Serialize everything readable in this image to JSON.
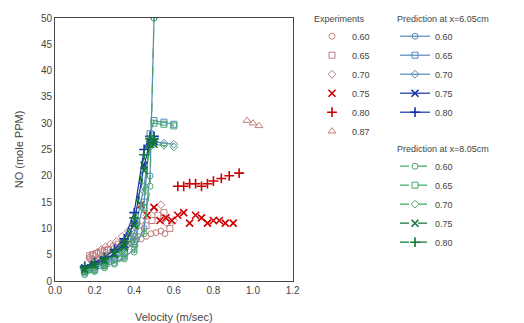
{
  "chart_data": {
    "type": "line",
    "xlabel": "Velocity (m/sec)",
    "ylabel": "NO (mole PPM)",
    "xlim": [
      0,
      1.2
    ],
    "ylim": [
      0,
      50
    ],
    "xticks": [
      {
        "value": 0,
        "label": "0.0"
      },
      0.2,
      0.4,
      0.6,
      0.8,
      {
        "value": 1.0,
        "label": "1.0"
      },
      1.2
    ],
    "yticks": [
      0,
      5,
      10,
      15,
      20,
      25,
      30,
      35,
      40,
      45,
      50
    ],
    "grid": false,
    "series": [
      {
        "name": "0.60",
        "group": "Experiments",
        "type": "scatter",
        "marker": "circle",
        "color": "#c08080",
        "x": [
          0.175,
          0.185,
          0.195,
          0.205,
          0.215,
          0.225,
          0.235,
          0.245,
          0.26,
          0.275,
          0.295,
          0.315,
          0.335,
          0.36,
          0.385,
          0.41,
          0.435,
          0.46,
          0.485,
          0.51,
          0.535,
          0.555
        ],
        "values": [
          4.2,
          3.8,
          3.5,
          3.8,
          4.0,
          4.2,
          3.8,
          4.5,
          4.8,
          5.2,
          5.5,
          6.0,
          6.3,
          6.8,
          7.2,
          7.8,
          8.0,
          8.5,
          9.0,
          9.2,
          9.5,
          9.0
        ]
      },
      {
        "name": "0.65",
        "group": "Experiments",
        "type": "scatter",
        "marker": "square",
        "color": "#c08080",
        "x": [
          0.175,
          0.19,
          0.21,
          0.23,
          0.25,
          0.27,
          0.295,
          0.32,
          0.345,
          0.37,
          0.4,
          0.43,
          0.46,
          0.49,
          0.52,
          0.55,
          0.58
        ],
        "values": [
          4.8,
          5.0,
          5.2,
          5.5,
          5.8,
          6.0,
          6.5,
          7.0,
          7.5,
          8.0,
          8.5,
          9.5,
          10.5,
          11.5,
          12.5,
          13.0,
          10.0
        ]
      },
      {
        "name": "0.70",
        "group": "Experiments",
        "type": "scatter",
        "marker": "diamond",
        "color": "#c08080",
        "x": [
          0.175,
          0.195,
          0.215,
          0.235,
          0.255,
          0.28,
          0.31,
          0.34,
          0.37,
          0.4,
          0.435,
          0.465,
          0.5,
          0.535,
          0.565,
          0.6
        ],
        "values": [
          4.5,
          5.0,
          5.5,
          6.0,
          6.5,
          7.0,
          7.5,
          8.5,
          9.5,
          10.5,
          11.5,
          12.5,
          13.5,
          14.5,
          11.0,
          11.5
        ]
      },
      {
        "name": "0.75",
        "group": "Experiments",
        "type": "scatter",
        "marker": "x",
        "color": "#cc0000",
        "x": [
          0.435,
          0.465,
          0.5,
          0.53,
          0.56,
          0.59,
          0.62,
          0.65,
          0.68,
          0.71,
          0.74,
          0.77,
          0.8,
          0.83,
          0.86,
          0.9
        ],
        "values": [
          14.5,
          12.5,
          14.0,
          11.5,
          12.0,
          11.5,
          12.5,
          13.0,
          11.0,
          12.5,
          12.0,
          11.0,
          11.5,
          11.5,
          11.0,
          11.0
        ]
      },
      {
        "name": "0.80",
        "group": "Experiments",
        "type": "scatter",
        "marker": "plus",
        "color": "#cc0000",
        "x": [
          0.62,
          0.65,
          0.68,
          0.71,
          0.74,
          0.77,
          0.8,
          0.84,
          0.88,
          0.93
        ],
        "values": [
          18.0,
          18.0,
          18.5,
          18.5,
          18.0,
          18.5,
          19.0,
          19.5,
          20.0,
          20.5
        ]
      },
      {
        "name": "0.87",
        "group": "Experiments",
        "type": "scatter",
        "marker": "triangle-up",
        "color": "#c08080",
        "x": [
          0.97,
          1.0,
          1.03
        ],
        "values": [
          30.5,
          30.0,
          29.5
        ]
      },
      {
        "name": "0.60",
        "group": "Prediction at x=6.05cm",
        "type": "line",
        "line_style": "solid",
        "marker": "circle",
        "color": "#5588bb",
        "x": [
          0.15,
          0.2,
          0.25,
          0.3,
          0.35,
          0.4,
          0.45,
          0.48,
          0.5
        ],
        "values": [
          1.5,
          2.0,
          2.8,
          3.5,
          4.5,
          6.0,
          10.0,
          20.0,
          50.0
        ]
      },
      {
        "name": "0.65",
        "group": "Prediction at x=6.05cm",
        "type": "line",
        "line_style": "solid",
        "marker": "square",
        "color": "#5588bb",
        "x": [
          0.15,
          0.2,
          0.25,
          0.3,
          0.35,
          0.4,
          0.45,
          0.48,
          0.5,
          0.55,
          0.6
        ],
        "values": [
          2.0,
          2.5,
          3.2,
          4.2,
          5.5,
          7.5,
          15.0,
          28.0,
          30.5,
          30.2,
          29.8
        ]
      },
      {
        "name": "0.70",
        "group": "Prediction at x=6.05cm",
        "type": "line",
        "line_style": "solid",
        "marker": "diamond",
        "color": "#5588bb",
        "x": [
          0.15,
          0.2,
          0.25,
          0.3,
          0.35,
          0.4,
          0.45,
          0.48,
          0.5,
          0.55,
          0.6
        ],
        "values": [
          2.2,
          2.8,
          3.5,
          4.5,
          6.0,
          9.0,
          18.0,
          26.5,
          26.5,
          26.2,
          26.0
        ]
      },
      {
        "name": "0.75",
        "group": "Prediction at x=6.05cm",
        "type": "line",
        "line_style": "solid",
        "marker": "x",
        "color": "#1133aa",
        "x": [
          0.15,
          0.2,
          0.25,
          0.3,
          0.35,
          0.4,
          0.45,
          0.48,
          0.5
        ],
        "values": [
          2.5,
          3.2,
          4.0,
          5.2,
          7.0,
          11.0,
          22.0,
          26.5,
          26.5
        ]
      },
      {
        "name": "0.80",
        "group": "Prediction at x=6.05cm",
        "type": "line",
        "line_style": "solid",
        "marker": "plus",
        "color": "#1133aa",
        "x": [
          0.15,
          0.2,
          0.25,
          0.3,
          0.35,
          0.4,
          0.45,
          0.48,
          0.5
        ],
        "values": [
          2.8,
          3.5,
          4.5,
          6.0,
          8.0,
          13.0,
          25.0,
          27.5,
          27.5
        ]
      },
      {
        "name": "0.60",
        "group": "Prediction at x=8.05cm",
        "type": "line",
        "line_style": "dashed",
        "marker": "circle",
        "color": "#44aa66",
        "x": [
          0.15,
          0.2,
          0.25,
          0.3,
          0.35,
          0.4,
          0.45,
          0.48,
          0.5
        ],
        "values": [
          1.2,
          1.8,
          2.5,
          3.2,
          4.2,
          5.5,
          9.0,
          18.0,
          50.0
        ]
      },
      {
        "name": "0.65",
        "group": "Prediction at x=8.05cm",
        "type": "line",
        "line_style": "dashed",
        "marker": "square",
        "color": "#44aa66",
        "x": [
          0.15,
          0.2,
          0.25,
          0.3,
          0.35,
          0.4,
          0.45,
          0.48,
          0.5,
          0.55,
          0.6
        ],
        "values": [
          1.8,
          2.2,
          3.0,
          4.0,
          5.2,
          7.0,
          14.0,
          27.0,
          30.0,
          29.8,
          29.5
        ]
      },
      {
        "name": "0.70",
        "group": "Prediction at x=8.05cm",
        "type": "line",
        "line_style": "dashed",
        "marker": "diamond",
        "color": "#44aa66",
        "x": [
          0.15,
          0.2,
          0.25,
          0.3,
          0.35,
          0.4,
          0.45,
          0.48,
          0.5,
          0.55,
          0.6
        ],
        "values": [
          2.0,
          2.5,
          3.2,
          4.2,
          5.5,
          8.5,
          17.0,
          25.5,
          26.0,
          25.8,
          25.5
        ]
      },
      {
        "name": "0.75",
        "group": "Prediction at x=8.05cm",
        "type": "line",
        "line_style": "dashed",
        "marker": "x",
        "color": "#117733",
        "x": [
          0.15,
          0.2,
          0.25,
          0.3,
          0.35,
          0.4,
          0.45,
          0.48,
          0.5
        ],
        "values": [
          2.2,
          3.0,
          3.8,
          5.0,
          6.5,
          10.5,
          21.0,
          26.0,
          26.0
        ]
      },
      {
        "name": "0.80",
        "group": "Prediction at x=8.05cm",
        "type": "line",
        "line_style": "dashed",
        "marker": "plus",
        "color": "#117733",
        "x": [
          0.15,
          0.2,
          0.25,
          0.3,
          0.35,
          0.4,
          0.45,
          0.48,
          0.5
        ],
        "values": [
          2.5,
          3.2,
          4.2,
          5.5,
          7.5,
          12.0,
          24.0,
          27.0,
          27.0
        ]
      }
    ]
  }
}
